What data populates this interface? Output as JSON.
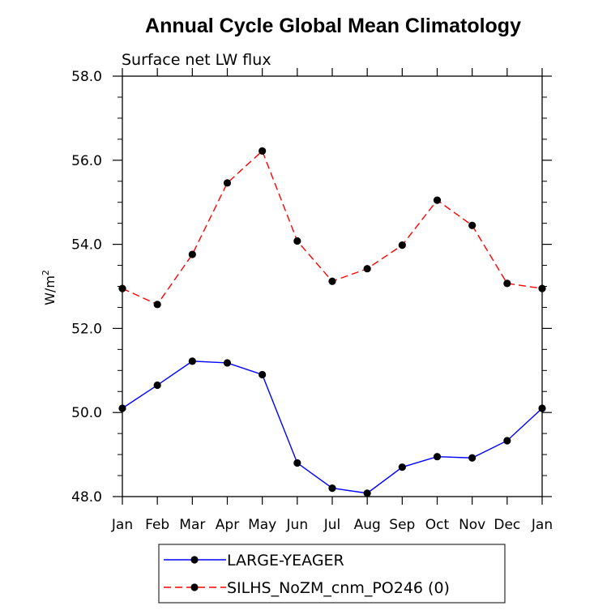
{
  "chart_data": {
    "type": "line",
    "title": "Annual Cycle Global Mean Climatology",
    "subtitle": "Surface net LW flux",
    "ylabel": "W/m",
    "ylabel_superscript": "2",
    "xlabel": "",
    "categories": [
      "Jan",
      "Feb",
      "Mar",
      "Apr",
      "May",
      "Jun",
      "Jul",
      "Aug",
      "Sep",
      "Oct",
      "Nov",
      "Dec",
      "Jan"
    ],
    "ylim": [
      48.0,
      58.0
    ],
    "yticks": [
      "48.0",
      "50.0",
      "52.0",
      "54.0",
      "56.0",
      "58.0"
    ],
    "grid": false,
    "legend_position": "bottom",
    "series": [
      {
        "name": "LARGE-YEAGER",
        "color": "#0000ff",
        "dash": "solid",
        "values": [
          50.1,
          50.65,
          51.22,
          51.18,
          50.9,
          48.8,
          48.2,
          48.08,
          48.7,
          48.95,
          48.92,
          49.33,
          50.1
        ]
      },
      {
        "name": "SILHS_NoZM_cnm_PO246 (0)",
        "color": "#ff0000",
        "dash": "dashed",
        "values": [
          52.95,
          52.57,
          53.76,
          55.46,
          56.22,
          54.08,
          53.12,
          53.42,
          53.98,
          55.05,
          54.45,
          53.07,
          52.95
        ]
      }
    ]
  }
}
